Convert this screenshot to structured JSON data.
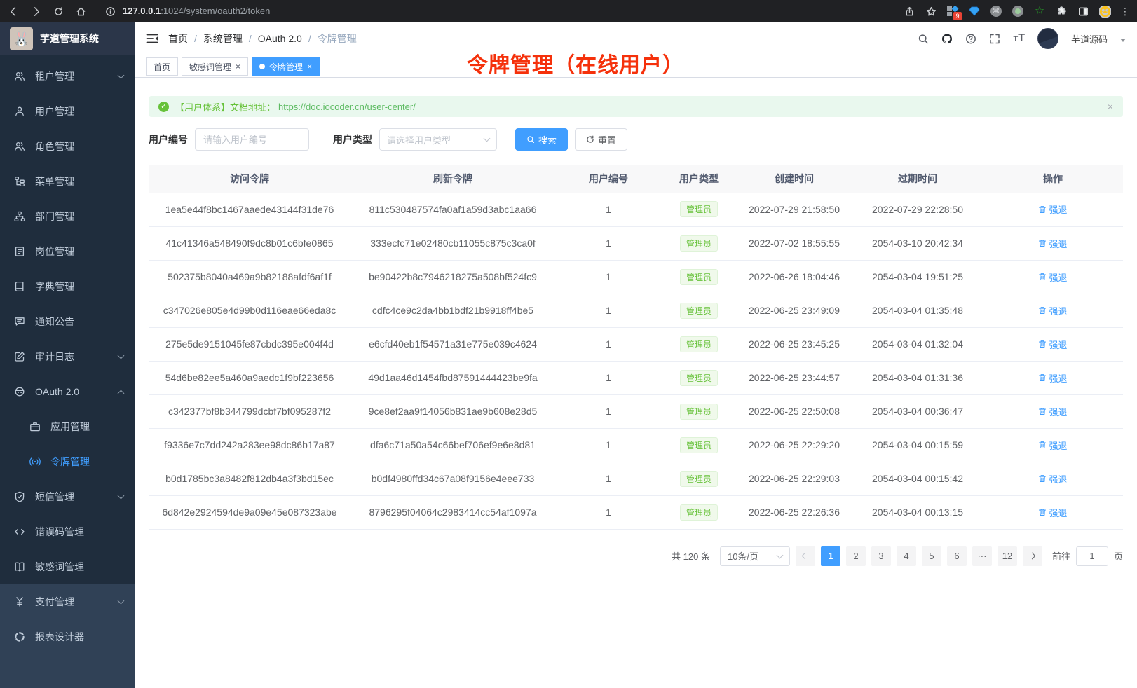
{
  "theme": {
    "accent": "#409eff",
    "success": "#67c23a",
    "annotation_red": "#f5310b",
    "sidebar_bg": "#304156",
    "submenu_bg": "#1f2d3d",
    "logo_bg": "#2b3649",
    "active_tab_bg": "#409eff"
  },
  "browser": {
    "url_host": "127.0.0.1",
    "url_rest": ":1024/system/oauth2/token",
    "extension_badge": "9"
  },
  "app": {
    "title": "芋道管理系统"
  },
  "sidebar": {
    "items": [
      {
        "id": "tenant",
        "label": "租户管理",
        "icon": "users-icon",
        "arrow": "down",
        "section": "sub"
      },
      {
        "id": "user",
        "label": "用户管理",
        "icon": "user-icon",
        "section": "sub"
      },
      {
        "id": "role",
        "label": "角色管理",
        "icon": "role-icon",
        "section": "sub"
      },
      {
        "id": "menu",
        "label": "菜单管理",
        "icon": "menu-tree-icon",
        "section": "sub"
      },
      {
        "id": "dept",
        "label": "部门管理",
        "icon": "org-icon",
        "section": "sub"
      },
      {
        "id": "post",
        "label": "岗位管理",
        "icon": "post-icon",
        "section": "sub"
      },
      {
        "id": "dict",
        "label": "字典管理",
        "icon": "dict-icon",
        "section": "sub"
      },
      {
        "id": "notice",
        "label": "通知公告",
        "icon": "notice-icon",
        "section": "sub"
      },
      {
        "id": "audit-log",
        "label": "审计日志",
        "icon": "audit-icon",
        "arrow": "down",
        "section": "sub"
      },
      {
        "id": "oauth2",
        "label": "OAuth 2.0",
        "icon": "oauth-icon",
        "arrow": "up",
        "section": "sub"
      },
      {
        "id": "oauth2-app",
        "label": "应用管理",
        "icon": "app-icon",
        "indent": true,
        "section": "sub"
      },
      {
        "id": "oauth2-token",
        "label": "令牌管理",
        "icon": "token-icon",
        "indent": true,
        "active": true,
        "section": "sub"
      },
      {
        "id": "sms",
        "label": "短信管理",
        "icon": "sms-icon",
        "arrow": "down",
        "section": "sub"
      },
      {
        "id": "error-code",
        "label": "错误码管理",
        "icon": "errcode-icon",
        "section": "sub"
      },
      {
        "id": "sensitive-word",
        "label": "敏感词管理",
        "icon": "sensitive-icon",
        "section": "sub"
      },
      {
        "id": "pay",
        "label": "支付管理",
        "icon": "pay-icon",
        "arrow": "down",
        "section": "top"
      },
      {
        "id": "report-designer",
        "label": "报表设计器",
        "icon": "report-icon",
        "section": "top"
      }
    ]
  },
  "navbar": {
    "breadcrumb": [
      "首页",
      "系统管理",
      "OAuth 2.0",
      "令牌管理"
    ],
    "user_name": "芋道源码"
  },
  "tabs": [
    {
      "label": "首页"
    },
    {
      "label": "敏感词管理",
      "closable": true
    },
    {
      "label": "令牌管理",
      "closable": true,
      "active": true
    }
  ],
  "annotation": {
    "text": "令牌管理（在线用户）"
  },
  "alert": {
    "text": "【用户体系】文档地址：",
    "link": "https://doc.iocoder.cn/user-center/"
  },
  "filters": {
    "user_id_label": "用户编号",
    "user_id_placeholder": "请输入用户编号",
    "user_type_label": "用户类型",
    "user_type_placeholder": "请选择用户类型",
    "search_label": "搜索",
    "reset_label": "重置"
  },
  "table": {
    "columns": [
      "访问令牌",
      "刷新令牌",
      "用户编号",
      "用户类型",
      "创建时间",
      "过期时间",
      "操作"
    ],
    "action_label": "强退",
    "rows": [
      {
        "access": "1ea5e44f8bc1467aaede43144f31de76",
        "refresh": "811c530487574fa0af1a59d3abc1aa66",
        "user_id": "1",
        "user_type": "管理员",
        "created": "2022-07-29 21:58:50",
        "expires": "2022-07-29 22:28:50"
      },
      {
        "access": "41c41346a548490f9dc8b01c6bfe0865",
        "refresh": "333ecfc71e02480cb11055c875c3ca0f",
        "user_id": "1",
        "user_type": "管理员",
        "created": "2022-07-02 18:55:55",
        "expires": "2054-03-10 20:42:34"
      },
      {
        "access": "502375b8040a469a9b82188afdf6af1f",
        "refresh": "be90422b8c7946218275a508bf524fc9",
        "user_id": "1",
        "user_type": "管理员",
        "created": "2022-06-26 18:04:46",
        "expires": "2054-03-04 19:51:25"
      },
      {
        "access": "c347026e805e4d99b0d116eae66eda8c",
        "refresh": "cdfc4ce9c2da4bb1bdf21b9918ff4be5",
        "user_id": "1",
        "user_type": "管理员",
        "created": "2022-06-25 23:49:09",
        "expires": "2054-03-04 01:35:48"
      },
      {
        "access": "275e5de9151045fe87cbdc395e004f4d",
        "refresh": "e6cfd40eb1f54571a31e775e039c4624",
        "user_id": "1",
        "user_type": "管理员",
        "created": "2022-06-25 23:45:25",
        "expires": "2054-03-04 01:32:04"
      },
      {
        "access": "54d6be82ee5a460a9aedc1f9bf223656",
        "refresh": "49d1aa46d1454fbd87591444423be9fa",
        "user_id": "1",
        "user_type": "管理员",
        "created": "2022-06-25 23:44:57",
        "expires": "2054-03-04 01:31:36"
      },
      {
        "access": "c342377bf8b344799dcbf7bf095287f2",
        "refresh": "9ce8ef2aa9f14056b831ae9b608e28d5",
        "user_id": "1",
        "user_type": "管理员",
        "created": "2022-06-25 22:50:08",
        "expires": "2054-03-04 00:36:47"
      },
      {
        "access": "f9336e7c7dd242a283ee98dc86b17a87",
        "refresh": "dfa6c71a50a54c66bef706ef9e6e8d81",
        "user_id": "1",
        "user_type": "管理员",
        "created": "2022-06-25 22:29:20",
        "expires": "2054-03-04 00:15:59"
      },
      {
        "access": "b0d1785bc3a8482f812db4a3f3bd15ec",
        "refresh": "b0df4980ffd34c67a08f9156e4eee733",
        "user_id": "1",
        "user_type": "管理员",
        "created": "2022-06-25 22:29:03",
        "expires": "2054-03-04 00:15:42"
      },
      {
        "access": "6d842e2924594de9a09e45e087323abe",
        "refresh": "8796295f04064c2983414cc54af1097a",
        "user_id": "1",
        "user_type": "管理员",
        "created": "2022-06-25 22:26:36",
        "expires": "2054-03-04 00:13:15"
      }
    ]
  },
  "pagination": {
    "total": "共 120 条",
    "page_size": "10条/页",
    "pages": [
      "1",
      "2",
      "3",
      "4",
      "5",
      "6",
      "···",
      "12"
    ],
    "active_page": "1",
    "goto_label": "前往",
    "goto_value": "1",
    "goto_unit": "页"
  }
}
